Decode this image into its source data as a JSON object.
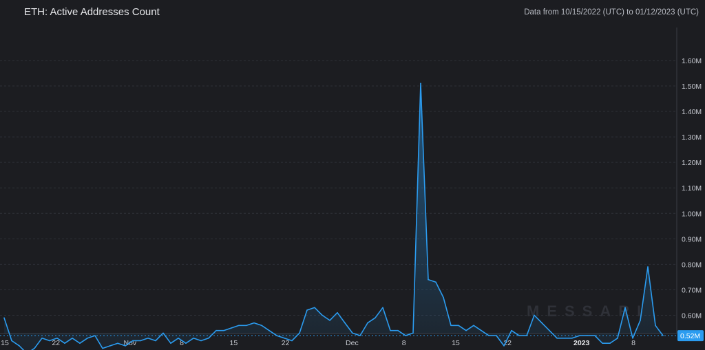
{
  "header": {
    "title": "ETH: Active Addresses Count",
    "date_range": "Data from 10/15/2022 (UTC) to 01/12/2023 (UTC)"
  },
  "watermark": "MESSARI",
  "colors": {
    "line": "#2b9cf0",
    "background": "#1c1d21",
    "grid": "#33363d",
    "badge": "#2b9cf0"
  },
  "chart_data": {
    "type": "area",
    "title": "ETH: Active Addresses Count",
    "x_start": "2022-10-15",
    "x_end": "2023-01-12",
    "ylim": [
      0.43,
      1.63
    ],
    "y_unit": "M",
    "y_ticks": [
      0.5,
      0.6,
      0.7,
      0.8,
      0.9,
      1.0,
      1.1,
      1.2,
      1.3,
      1.4,
      1.5,
      1.6
    ],
    "y_tick_labels": [
      "0.50M",
      "0.60M",
      "0.70M",
      "0.80M",
      "0.90M",
      "1.00M",
      "1.10M",
      "1.20M",
      "1.30M",
      "1.40M",
      "1.50M",
      "1.60M"
    ],
    "x_tick_labels": [
      {
        "date": "2022-10-15",
        "label": "15"
      },
      {
        "date": "2022-10-22",
        "label": "22"
      },
      {
        "date": "2022-11-01",
        "label": "Nov"
      },
      {
        "date": "2022-11-08",
        "label": "8"
      },
      {
        "date": "2022-11-15",
        "label": "15"
      },
      {
        "date": "2022-11-22",
        "label": "22"
      },
      {
        "date": "2022-12-01",
        "label": "Dec"
      },
      {
        "date": "2022-12-08",
        "label": "8"
      },
      {
        "date": "2022-12-15",
        "label": "15"
      },
      {
        "date": "2022-12-22",
        "label": "22"
      },
      {
        "date": "2023-01-01",
        "label": "2023",
        "bold": true
      },
      {
        "date": "2023-01-08",
        "label": "8"
      }
    ],
    "last_value_label": "0.52M",
    "last_value": 0.52,
    "grid": true,
    "series": [
      {
        "values": [
          0.59,
          0.5,
          0.48,
          0.45,
          0.47,
          0.51,
          0.5,
          0.51,
          0.49,
          0.51,
          0.49,
          0.51,
          0.52,
          0.47,
          0.48,
          0.49,
          0.48,
          0.5,
          0.5,
          0.51,
          0.5,
          0.53,
          0.49,
          0.51,
          0.49,
          0.51,
          0.5,
          0.51,
          0.54,
          0.54,
          0.55,
          0.56,
          0.56,
          0.57,
          0.56,
          0.54,
          0.52,
          0.51,
          0.5,
          0.53,
          0.62,
          0.63,
          0.6,
          0.58,
          0.61,
          0.57,
          0.53,
          0.52,
          0.57,
          0.59,
          0.63,
          0.54,
          0.54,
          0.52,
          0.53,
          1.51,
          0.74,
          0.73,
          0.67,
          0.56,
          0.56,
          0.54,
          0.56,
          0.54,
          0.52,
          0.52,
          0.48,
          0.54,
          0.52,
          0.52,
          0.6,
          0.57,
          0.54,
          0.51,
          0.51,
          0.51,
          0.52,
          0.52,
          0.52,
          0.49,
          0.49,
          0.51,
          0.63,
          0.51,
          0.58,
          0.79,
          0.56,
          0.52
        ]
      }
    ]
  }
}
